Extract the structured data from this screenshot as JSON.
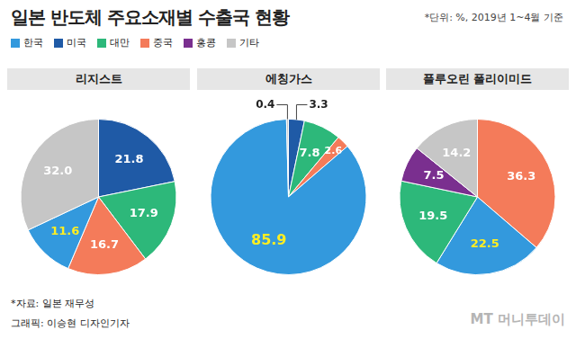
{
  "title": "일본 반도체 주요소재별 수출국 현황",
  "subtitle": "*단위: %, 2019년 1~4월 기준",
  "legend_entries": [
    {
      "name": "한국",
      "color": "#3399dd"
    },
    {
      "name": "미국",
      "color": "#1f5aa6"
    },
    {
      "name": "대만",
      "color": "#2db87a"
    },
    {
      "name": "중국",
      "color": "#f47b5a"
    },
    {
      "name": "홍콩",
      "color": "#7a2f8f"
    },
    {
      "name": "기타",
      "color": "#c6c6c6"
    }
  ],
  "chart_data": [
    {
      "type": "pie",
      "title": "리지스트",
      "categories": [
        "미국",
        "대만",
        "중국",
        "한국",
        "기타"
      ],
      "values": [
        21.8,
        17.9,
        16.7,
        11.6,
        32.0
      ],
      "value_labels": [
        "21.8",
        "17.9",
        "16.7",
        "11.6",
        "32.0"
      ],
      "colors": [
        "#1f5aa6",
        "#2db87a",
        "#f47b5a",
        "#3399dd",
        "#c6c6c6"
      ],
      "data_labels": true
    },
    {
      "type": "pie",
      "title": "에칭가스",
      "categories": [
        "미국",
        "대만",
        "중국",
        "한국",
        "기타"
      ],
      "values": [
        3.3,
        7.8,
        2.6,
        85.9,
        0.4
      ],
      "colors": [
        "#1f5aa6",
        "#2db87a",
        "#f47b5a",
        "#3399dd",
        "#c6c6c6"
      ],
      "data_labels": true
    },
    {
      "type": "pie",
      "title": "플루오린 폴리이미드",
      "categories": [
        "중국",
        "한국",
        "대만",
        "홍콩",
        "기타"
      ],
      "values": [
        36.3,
        22.5,
        19.5,
        7.5,
        14.2
      ],
      "colors": [
        "#f47b5a",
        "#3399dd",
        "#2db87a",
        "#7a2f8f",
        "#c6c6c6"
      ],
      "data_labels": true
    }
  ],
  "source": "*자료: 일본 재무성",
  "credit": "그래픽: 이승현 디자인기자",
  "logo": "MT 머니투데이"
}
